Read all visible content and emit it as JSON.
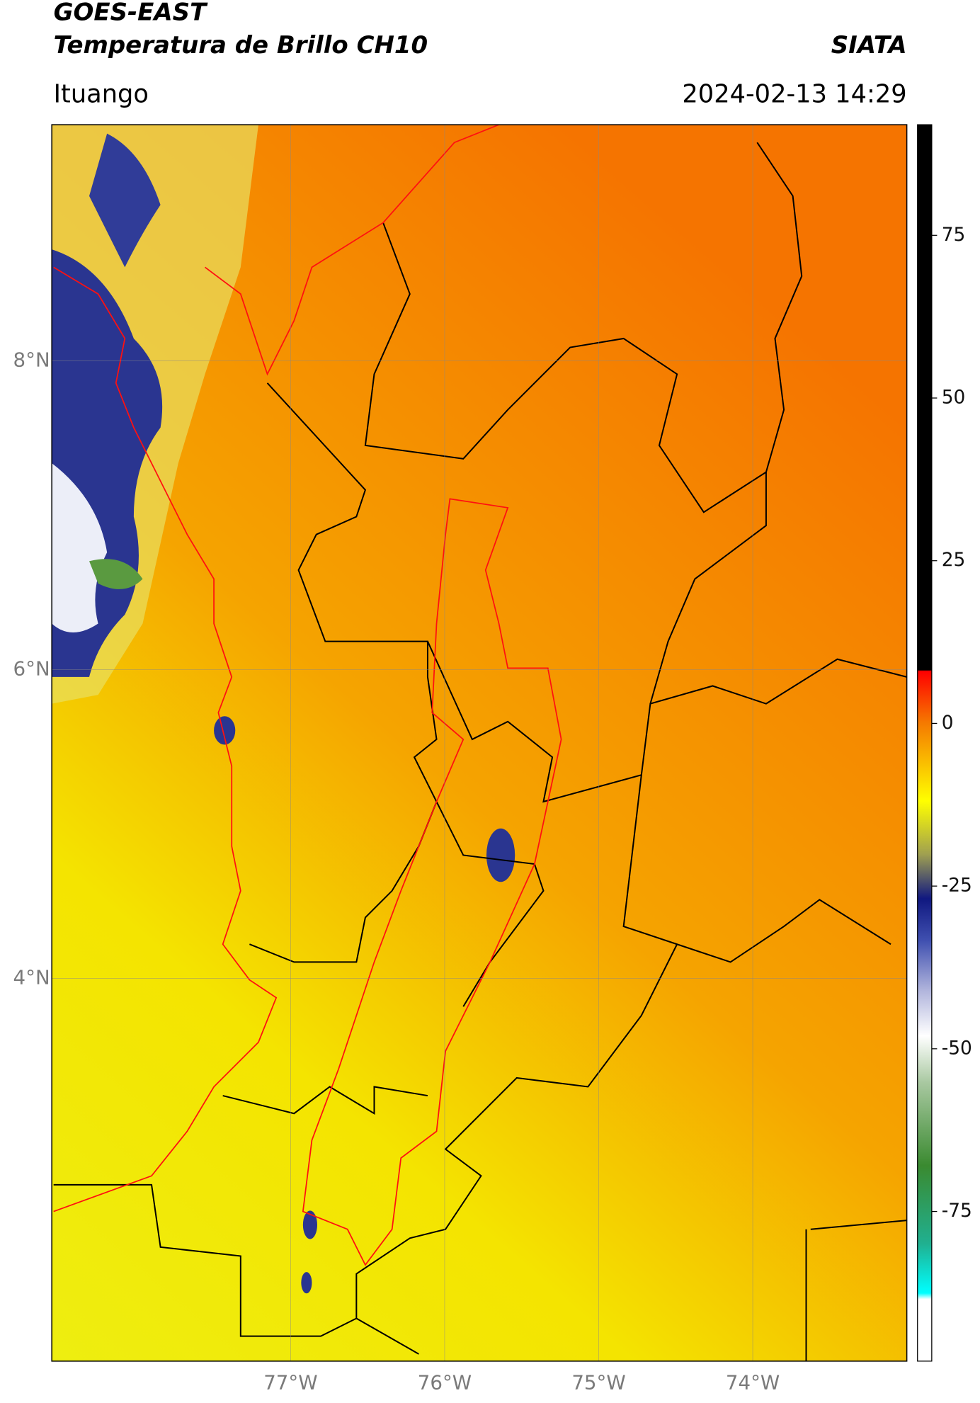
{
  "header": {
    "title": "GOES-EAST",
    "subtitle": "Temperatura de Brillo CH10",
    "brand": "SIATA",
    "location": "Ituango",
    "datetime": "2024-02-13 14:29"
  },
  "map": {
    "xlim": [
      -78.55,
      -73.0
    ],
    "ylim": [
      1.52,
      9.53
    ],
    "xticks": [
      {
        "value": -77,
        "label": "77°W"
      },
      {
        "value": -76,
        "label": "76°W"
      },
      {
        "value": -75,
        "label": "75°W"
      },
      {
        "value": -74,
        "label": "74°W"
      }
    ],
    "yticks": [
      {
        "value": 8,
        "label": "8°N"
      },
      {
        "value": 6,
        "label": "6°N"
      },
      {
        "value": 4,
        "label": "4°N"
      }
    ],
    "grid": true
  },
  "colorbar": {
    "lim": [
      -98,
      92
    ],
    "ticks": [
      75,
      50,
      25,
      0,
      -25,
      -50,
      -75
    ]
  }
}
